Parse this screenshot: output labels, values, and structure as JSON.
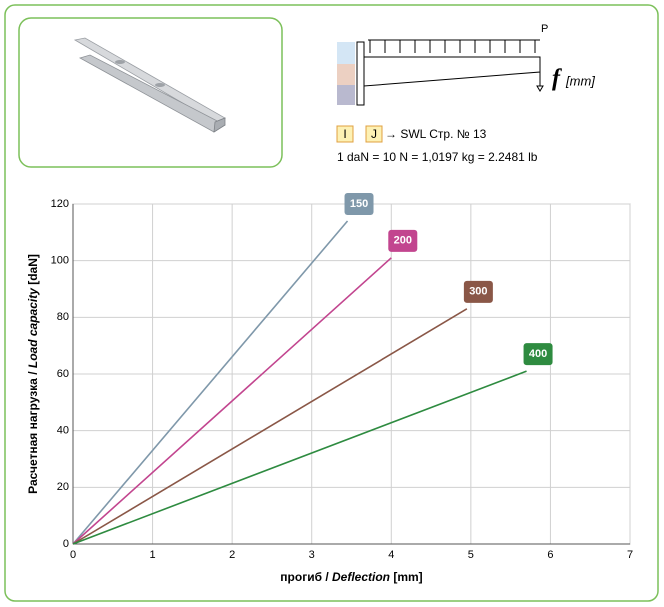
{
  "header": {
    "load_label": "P",
    "deflection_symbol": "f",
    "deflection_unit": "[mm]",
    "legend_i": "I",
    "legend_j": "J",
    "legend_ref": "→ SWL Стр. № 13",
    "conversion": "1 daN = 10 N = 1,0197 kg = 2.2481 lb"
  },
  "chart_data": {
    "type": "line",
    "xlabel": [
      "прогиб / ",
      "Deflection",
      " [mm]"
    ],
    "ylabel": [
      "Расчетная нагрузка / ",
      "Load capacity",
      " [daN]"
    ],
    "xlim": [
      0,
      7
    ],
    "ylim": [
      0,
      120
    ],
    "xticks": [
      0,
      1,
      2,
      3,
      4,
      5,
      6,
      7
    ],
    "yticks": [
      0,
      20,
      40,
      60,
      80,
      100,
      120
    ],
    "grid": true,
    "series": [
      {
        "name": "150",
        "color": "#7f98aa",
        "x": [
          0,
          3.45
        ],
        "values": [
          0,
          114
        ]
      },
      {
        "name": "200",
        "color": "#c2458f",
        "x": [
          0,
          4.0
        ],
        "values": [
          0,
          101
        ]
      },
      {
        "name": "300",
        "color": "#8a5747",
        "x": [
          0,
          4.95
        ],
        "values": [
          0,
          83
        ]
      },
      {
        "name": "400",
        "color": "#2e8b40",
        "x": [
          0,
          5.7
        ],
        "values": [
          0,
          61
        ]
      }
    ]
  }
}
